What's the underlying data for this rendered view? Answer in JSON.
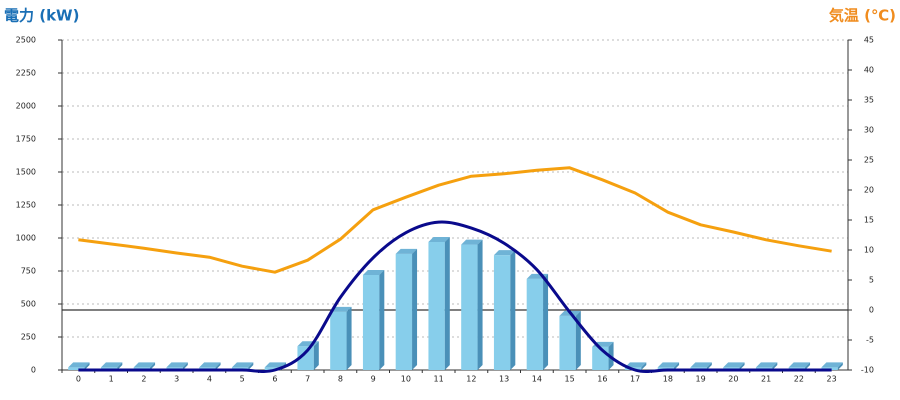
{
  "chart_data": {
    "type": "bar",
    "y_label": "電力 (kW)",
    "y2_label": "気温 (℃)",
    "categories": [
      "0",
      "1",
      "2",
      "3",
      "4",
      "5",
      "6",
      "7",
      "8",
      "9",
      "10",
      "11",
      "12",
      "13",
      "14",
      "15",
      "16",
      "17",
      "18",
      "19",
      "20",
      "21",
      "22",
      "23"
    ],
    "ylim": [
      0,
      2500
    ],
    "yticks": [
      0,
      250,
      500,
      750,
      1000,
      1250,
      1500,
      1750,
      2000,
      2250,
      2500
    ],
    "y2lim": [
      -10,
      45
    ],
    "y2ticks": [
      -10,
      -5,
      0,
      5,
      10,
      15,
      20,
      25,
      30,
      35,
      40,
      45
    ],
    "grid": true,
    "series": [
      {
        "type": "bar",
        "color": "#87ceeb",
        "values": [
          20,
          20,
          20,
          20,
          20,
          20,
          20,
          180,
          440,
          720,
          880,
          970,
          950,
          870,
          690,
          410,
          175,
          20,
          20,
          20,
          20,
          20,
          20,
          20
        ]
      },
      {
        "type": "line",
        "smooth": true,
        "color": "#0a0a8c",
        "values": [
          0,
          0,
          0,
          0,
          0,
          0,
          0,
          150,
          550,
          850,
          1040,
          1120,
          1075,
          960,
          760,
          440,
          150,
          0,
          0,
          0,
          0,
          0,
          0,
          0
        ]
      },
      {
        "type": "line",
        "axis": "y2",
        "color": "#f5a00f",
        "values": [
          11.7,
          11,
          10.3,
          9.5,
          8.8,
          7.3,
          6.3,
          8.3,
          11.8,
          16.7,
          18.8,
          20.8,
          22.3,
          22.7,
          23.3,
          23.7,
          21.7,
          19.5,
          16.3,
          14.2,
          13,
          11.7,
          10.7,
          9.8
        ]
      }
    ]
  }
}
